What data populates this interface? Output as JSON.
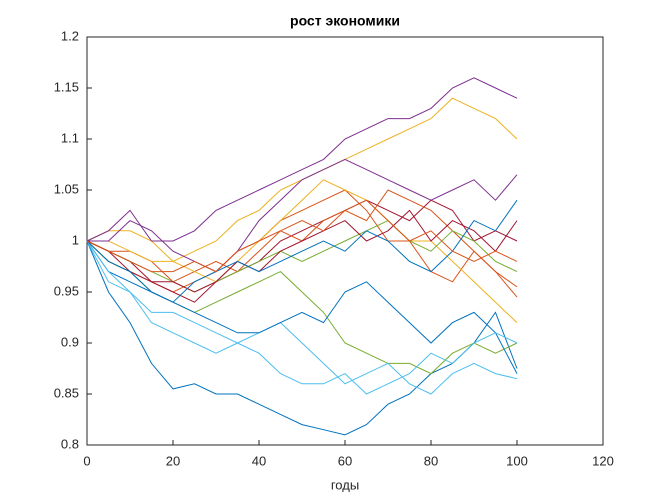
{
  "chart_data": {
    "type": "line",
    "title": "рост экономики",
    "x_label": "годы",
    "x": [
      0,
      5,
      10,
      15,
      20,
      25,
      30,
      35,
      40,
      45,
      50,
      55,
      60,
      65,
      70,
      75,
      80,
      85,
      90,
      95,
      100
    ],
    "xlim": [
      0,
      120
    ],
    "xticks": [
      0,
      20,
      40,
      60,
      80,
      100,
      120
    ],
    "ylim": [
      0.8,
      1.2
    ],
    "yticks": [
      0.8,
      0.85,
      0.9,
      0.95,
      1,
      1.05,
      1.1,
      1.15,
      1.2
    ],
    "grid": false,
    "series": [
      {
        "color": "#0072BD",
        "values": [
          1,
          0.95,
          0.92,
          0.88,
          0.855,
          0.86,
          0.85,
          0.85,
          0.84,
          0.83,
          0.82,
          0.815,
          0.81,
          0.82,
          0.84,
          0.85,
          0.87,
          0.88,
          0.9,
          0.93,
          0.875
        ]
      },
      {
        "color": "#D95319",
        "values": [
          1,
          0.98,
          0.97,
          0.96,
          0.95,
          0.96,
          0.97,
          0.99,
          1.0,
          1.02,
          1.03,
          1.04,
          1.05,
          1.03,
          1.0,
          1.0,
          0.97,
          0.96,
          0.99,
          0.97,
          0.955
        ]
      },
      {
        "color": "#EDB120",
        "values": [
          1,
          1.01,
          1.01,
          1.0,
          0.98,
          0.99,
          1.0,
          1.02,
          1.03,
          1.05,
          1.06,
          1.07,
          1.08,
          1.09,
          1.1,
          1.11,
          1.12,
          1.14,
          1.13,
          1.12,
          1.1
        ]
      },
      {
        "color": "#7E2F8E",
        "values": [
          1,
          1.01,
          1.03,
          1.0,
          1.0,
          1.01,
          1.03,
          1.04,
          1.05,
          1.06,
          1.07,
          1.08,
          1.1,
          1.11,
          1.12,
          1.12,
          1.13,
          1.15,
          1.16,
          1.15,
          1.14
        ]
      },
      {
        "color": "#77AC30",
        "values": [
          1,
          0.98,
          0.97,
          0.95,
          0.94,
          0.93,
          0.94,
          0.95,
          0.96,
          0.97,
          0.95,
          0.93,
          0.9,
          0.89,
          0.88,
          0.88,
          0.87,
          0.89,
          0.9,
          0.89,
          0.9
        ]
      },
      {
        "color": "#4DBEEE",
        "values": [
          1,
          0.96,
          0.95,
          0.92,
          0.91,
          0.9,
          0.89,
          0.9,
          0.91,
          0.92,
          0.9,
          0.88,
          0.86,
          0.87,
          0.88,
          0.86,
          0.85,
          0.87,
          0.88,
          0.87,
          0.865
        ]
      },
      {
        "color": "#A2142F",
        "values": [
          1,
          0.99,
          0.98,
          0.96,
          0.95,
          0.94,
          0.96,
          0.97,
          0.98,
          1.0,
          1.01,
          1.02,
          1.03,
          1.04,
          1.03,
          1.02,
          1.04,
          1.03,
          1.0,
          1.01,
          1.0
        ]
      },
      {
        "color": "#0072BD",
        "values": [
          1,
          0.97,
          0.96,
          0.95,
          0.94,
          0.93,
          0.92,
          0.91,
          0.91,
          0.92,
          0.93,
          0.92,
          0.95,
          0.96,
          0.94,
          0.92,
          0.9,
          0.92,
          0.93,
          0.91,
          0.87
        ]
      },
      {
        "color": "#D95319",
        "values": [
          1,
          0.99,
          0.99,
          0.98,
          0.96,
          0.97,
          0.98,
          0.97,
          0.99,
          1.01,
          1.0,
          1.02,
          1.03,
          1.02,
          1.05,
          1.04,
          1.03,
          1.01,
          0.99,
          0.97,
          0.945
        ]
      },
      {
        "color": "#EDB120",
        "values": [
          1,
          1.0,
          0.99,
          0.98,
          0.98,
          0.97,
          0.96,
          0.98,
          1.0,
          1.02,
          1.04,
          1.06,
          1.05,
          1.04,
          1.02,
          1.0,
          1.0,
          0.98,
          0.96,
          0.94,
          0.92
        ]
      },
      {
        "color": "#7E2F8E",
        "values": [
          1,
          1.0,
          1.02,
          1.01,
          0.99,
          0.98,
          0.97,
          0.99,
          1.02,
          1.04,
          1.06,
          1.07,
          1.08,
          1.07,
          1.06,
          1.05,
          1.04,
          1.05,
          1.06,
          1.04,
          1.065
        ]
      },
      {
        "color": "#77AC30",
        "values": [
          1,
          0.99,
          0.98,
          0.97,
          0.96,
          0.95,
          0.96,
          0.97,
          0.98,
          0.99,
          0.98,
          0.99,
          1.0,
          1.01,
          1.02,
          1.0,
          0.99,
          1.01,
          1.0,
          0.98,
          0.97
        ]
      },
      {
        "color": "#4DBEEE",
        "values": [
          1,
          0.97,
          0.95,
          0.93,
          0.93,
          0.92,
          0.91,
          0.9,
          0.89,
          0.87,
          0.86,
          0.86,
          0.87,
          0.85,
          0.86,
          0.87,
          0.89,
          0.88,
          0.9,
          0.91,
          0.9
        ]
      },
      {
        "color": "#A2142F",
        "values": [
          1,
          0.99,
          0.97,
          0.96,
          0.96,
          0.95,
          0.96,
          0.98,
          0.97,
          0.99,
          1.0,
          1.01,
          1.02,
          1.0,
          1.01,
          1.03,
          1.0,
          1.02,
          1.01,
          0.99,
          1.02
        ]
      },
      {
        "color": "#0072BD",
        "values": [
          1,
          0.98,
          0.97,
          0.95,
          0.94,
          0.96,
          0.97,
          0.98,
          0.97,
          0.98,
          0.99,
          1.0,
          0.99,
          1.01,
          1.0,
          0.98,
          0.97,
          0.99,
          1.02,
          1.01,
          1.04
        ]
      },
      {
        "color": "#D95319",
        "values": [
          1,
          0.99,
          0.98,
          0.97,
          0.97,
          0.98,
          0.97,
          0.99,
          1.0,
          1.01,
          1.02,
          1.01,
          1.03,
          1.04,
          1.02,
          1.0,
          1.01,
          0.99,
          0.98,
          0.99,
          0.98
        ]
      }
    ]
  }
}
